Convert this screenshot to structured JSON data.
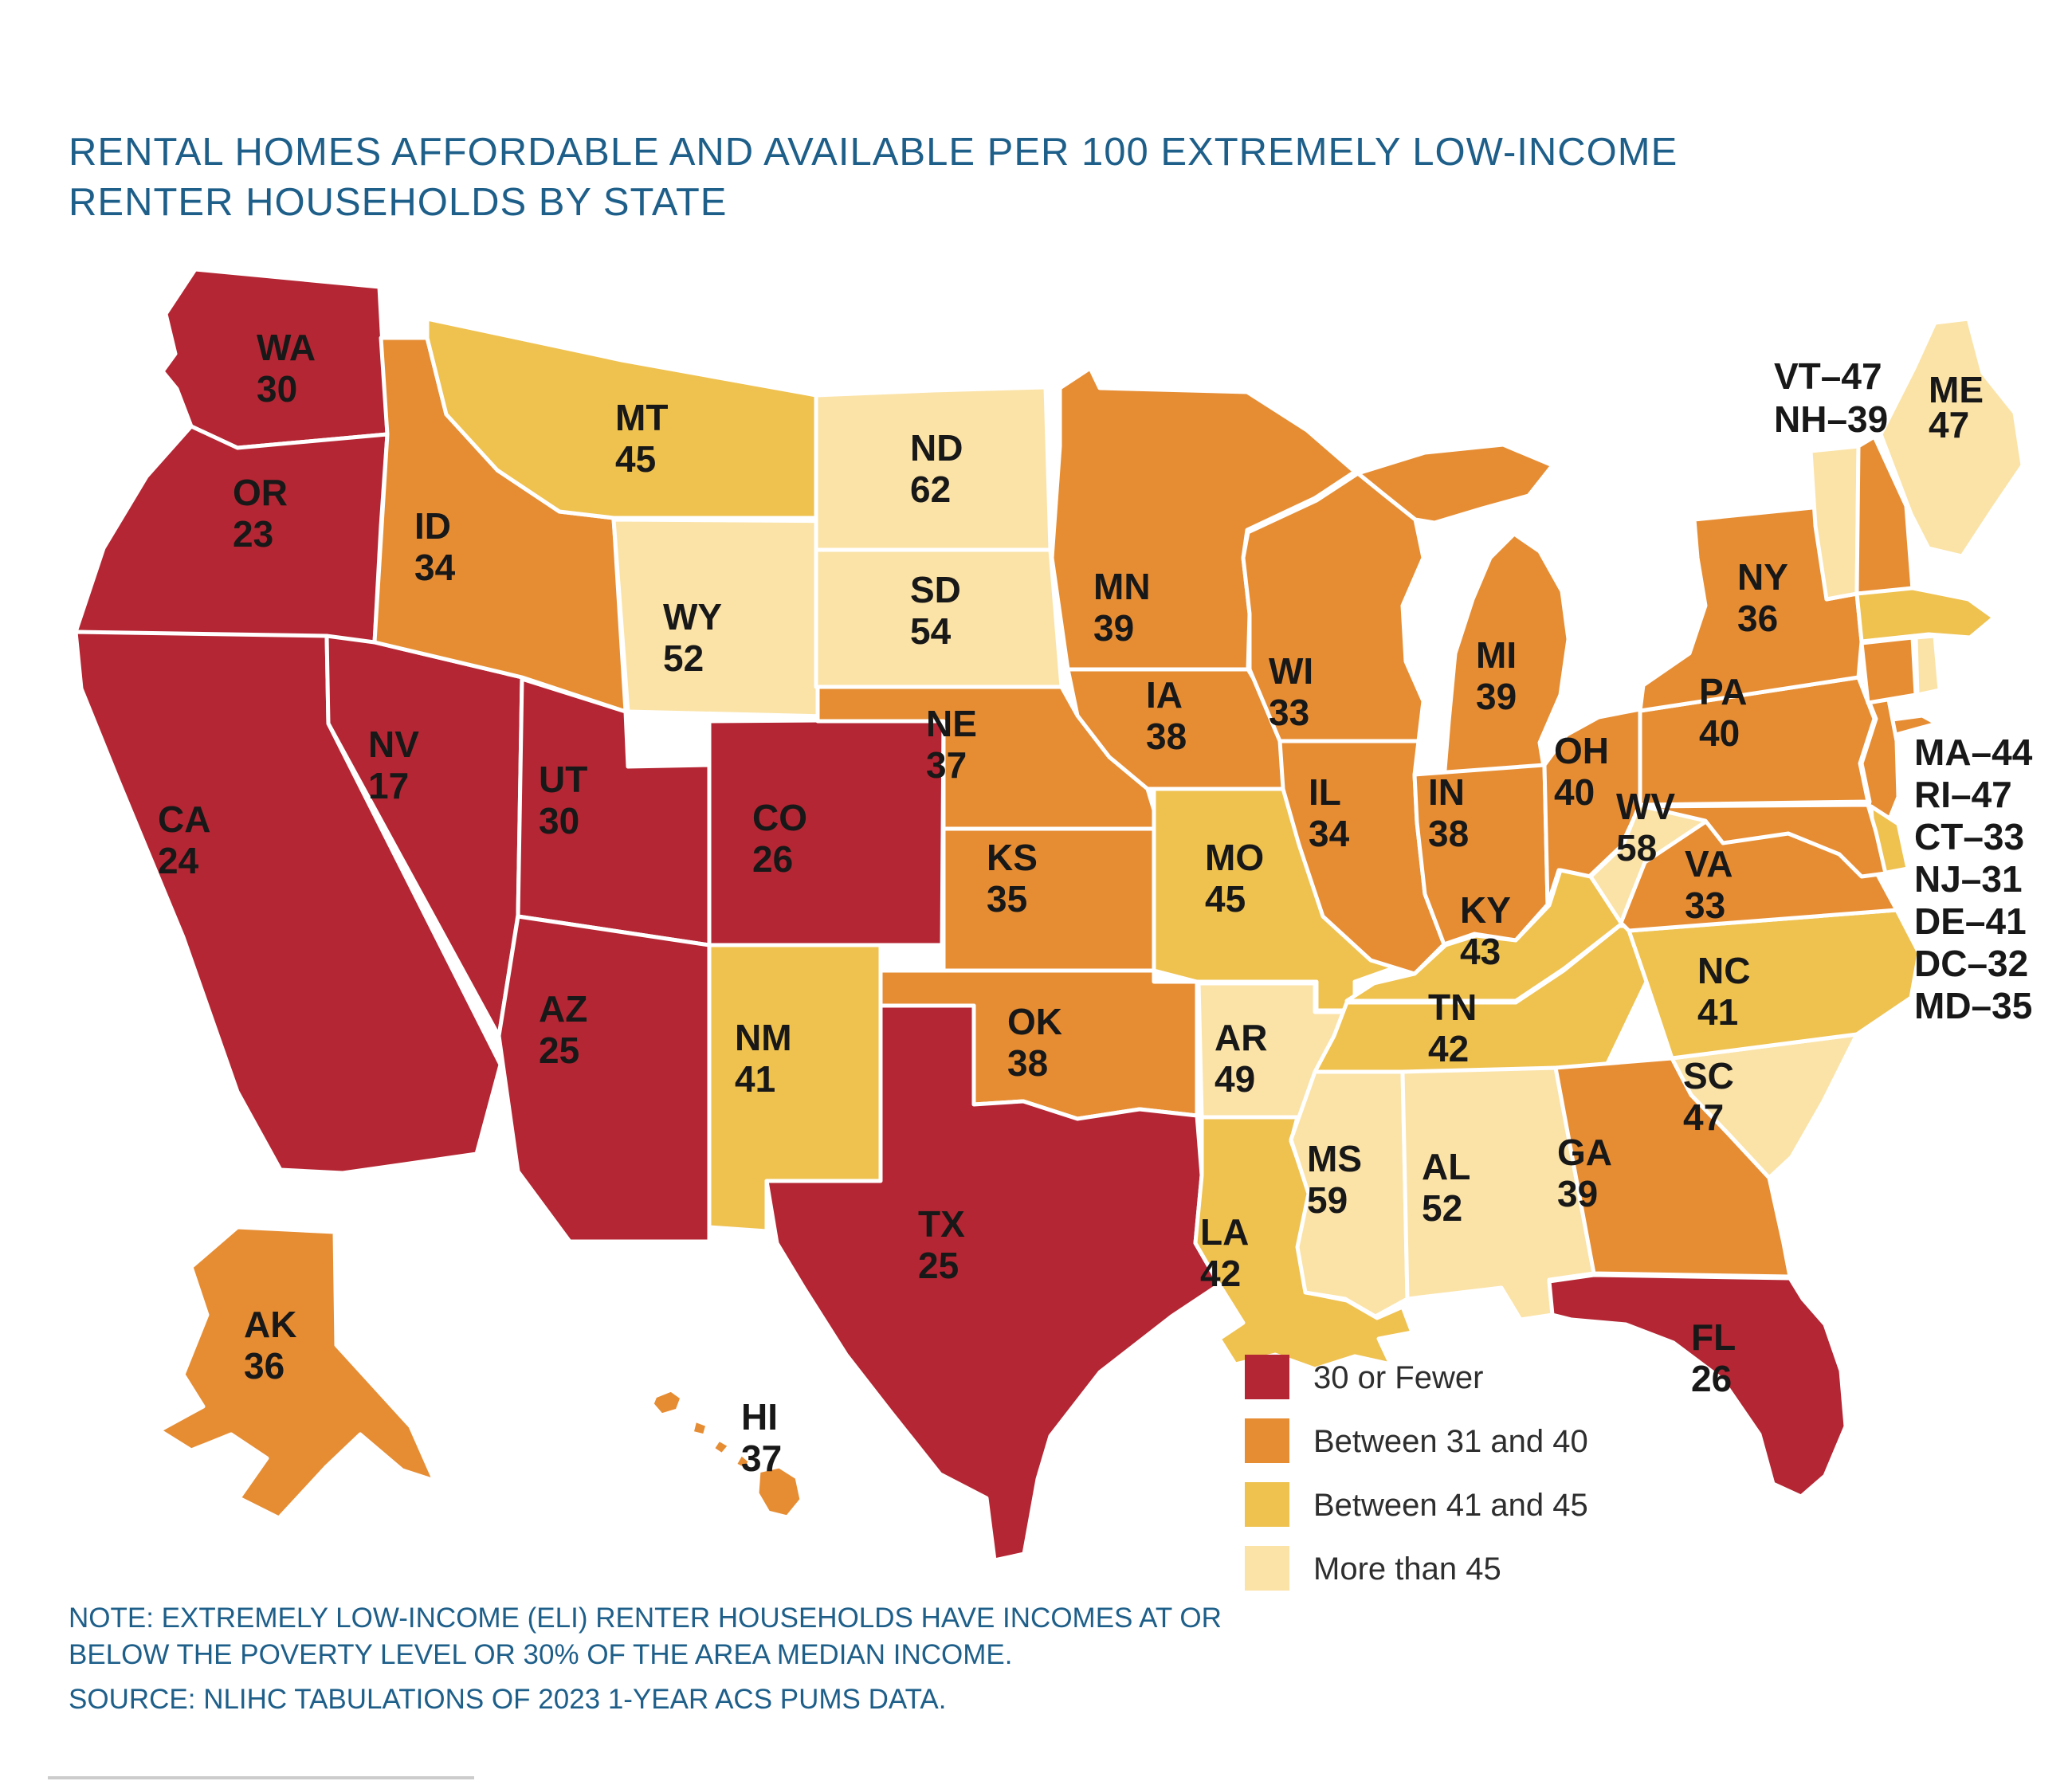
{
  "title": {
    "text": "RENTAL HOMES AFFORDABLE AND AVAILABLE PER 100 EXTREMELY LOW-INCOME RENTER HOUSEHOLDS BY STATE"
  },
  "colors": {
    "bucket_30_or_fewer": "#b42633",
    "bucket_31_40": "#e68d34",
    "bucket_41_45": "#efc14f",
    "bucket_more_45": "#fbe3a7",
    "title_blue": "#1e5f8a",
    "label_black": "#181818"
  },
  "legend": {
    "items": [
      {
        "label": "30 or Fewer",
        "color": "#b42633"
      },
      {
        "label": "Between 31 and 40",
        "color": "#e68d34"
      },
      {
        "label": "Between 41 and 45",
        "color": "#efc14f"
      },
      {
        "label": "More than 45",
        "color": "#fbe3a7"
      }
    ]
  },
  "callouts": {
    "vt_nh": [
      "VT–47",
      "NH–39"
    ],
    "east": [
      "MA–44",
      "RI–47",
      "CT–33",
      "NJ–31",
      "DE–41",
      "DC–32",
      "MD–35"
    ]
  },
  "notes": {
    "note": "NOTE: EXTREMELY LOW-INCOME (ELI) RENTER HOUSEHOLDS HAVE INCOMES AT OR BELOW THE POVERTY LEVEL OR 30% OF THE AREA MEDIAN INCOME.",
    "source": "SOURCE: NLIHC TABULATIONS OF 2023 1-YEAR ACS PUMS DATA."
  },
  "states": {
    "WA": {
      "abbr": "WA",
      "value": "30",
      "color": "#b42633"
    },
    "OR": {
      "abbr": "OR",
      "value": "23",
      "color": "#b42633"
    },
    "CA": {
      "abbr": "CA",
      "value": "24",
      "color": "#b42633"
    },
    "NV": {
      "abbr": "NV",
      "value": "17",
      "color": "#b42633"
    },
    "ID": {
      "abbr": "ID",
      "value": "34",
      "color": "#e68d34"
    },
    "MT": {
      "abbr": "MT",
      "value": "45",
      "color": "#efc14f"
    },
    "WY": {
      "abbr": "WY",
      "value": "52",
      "color": "#fbe3a7"
    },
    "UT": {
      "abbr": "UT",
      "value": "30",
      "color": "#b42633"
    },
    "CO": {
      "abbr": "CO",
      "value": "26",
      "color": "#b42633"
    },
    "AZ": {
      "abbr": "AZ",
      "value": "25",
      "color": "#b42633"
    },
    "NM": {
      "abbr": "NM",
      "value": "41",
      "color": "#efc14f"
    },
    "ND": {
      "abbr": "ND",
      "value": "62",
      "color": "#fbe3a7"
    },
    "SD": {
      "abbr": "SD",
      "value": "54",
      "color": "#fbe3a7"
    },
    "NE": {
      "abbr": "NE",
      "value": "37",
      "color": "#e68d34"
    },
    "KS": {
      "abbr": "KS",
      "value": "35",
      "color": "#e68d34"
    },
    "OK": {
      "abbr": "OK",
      "value": "38",
      "color": "#e68d34"
    },
    "TX": {
      "abbr": "TX",
      "value": "25",
      "color": "#b42633"
    },
    "MN": {
      "abbr": "MN",
      "value": "39",
      "color": "#e68d34"
    },
    "IA": {
      "abbr": "IA",
      "value": "38",
      "color": "#e68d34"
    },
    "MO": {
      "abbr": "MO",
      "value": "45",
      "color": "#efc14f"
    },
    "AR": {
      "abbr": "AR",
      "value": "49",
      "color": "#fbe3a7"
    },
    "LA": {
      "abbr": "LA",
      "value": "42",
      "color": "#efc14f"
    },
    "WI": {
      "abbr": "WI",
      "value": "33",
      "color": "#e68d34"
    },
    "IL": {
      "abbr": "IL",
      "value": "34",
      "color": "#e68d34"
    },
    "MI": {
      "abbr": "MI",
      "value": "39",
      "color": "#e68d34"
    },
    "IN": {
      "abbr": "IN",
      "value": "38",
      "color": "#e68d34"
    },
    "OH": {
      "abbr": "OH",
      "value": "40",
      "color": "#e68d34"
    },
    "KY": {
      "abbr": "KY",
      "value": "43",
      "color": "#efc14f"
    },
    "TN": {
      "abbr": "TN",
      "value": "42",
      "color": "#efc14f"
    },
    "MS": {
      "abbr": "MS",
      "value": "59",
      "color": "#fbe3a7"
    },
    "AL": {
      "abbr": "AL",
      "value": "52",
      "color": "#fbe3a7"
    },
    "GA": {
      "abbr": "GA",
      "value": "39",
      "color": "#e68d34"
    },
    "FL": {
      "abbr": "FL",
      "value": "26",
      "color": "#b42633"
    },
    "SC": {
      "abbr": "SC",
      "value": "47",
      "color": "#fbe3a7"
    },
    "NC": {
      "abbr": "NC",
      "value": "41",
      "color": "#efc14f"
    },
    "VA": {
      "abbr": "VA",
      "value": "33",
      "color": "#e68d34"
    },
    "WV": {
      "abbr": "WV",
      "value": "58",
      "color": "#fbe3a7"
    },
    "PA": {
      "abbr": "PA",
      "value": "40",
      "color": "#e68d34"
    },
    "NY": {
      "abbr": "NY",
      "value": "36",
      "color": "#e68d34"
    },
    "NJ": {
      "abbr": "NJ",
      "value": "31",
      "color": "#e68d34"
    },
    "DE": {
      "abbr": "DE",
      "value": "41",
      "color": "#efc14f"
    },
    "MD": {
      "abbr": "MD",
      "value": "35",
      "color": "#e68d34"
    },
    "VT": {
      "abbr": "VT",
      "value": "47",
      "color": "#fbe3a7"
    },
    "NH": {
      "abbr": "NH",
      "value": "39",
      "color": "#e68d34"
    },
    "MA": {
      "abbr": "MA",
      "value": "44",
      "color": "#efc14f"
    },
    "CT": {
      "abbr": "CT",
      "value": "33",
      "color": "#e68d34"
    },
    "RI": {
      "abbr": "RI",
      "value": "47",
      "color": "#fbe3a7"
    },
    "ME": {
      "abbr": "ME",
      "value": "47",
      "color": "#fbe3a7"
    },
    "AK": {
      "abbr": "AK",
      "value": "36",
      "color": "#e68d34"
    },
    "HI": {
      "abbr": "HI",
      "value": "37",
      "color": "#e68d34"
    },
    "DC": {
      "abbr": "DC",
      "value": "32",
      "color": "#e68d34"
    }
  }
}
